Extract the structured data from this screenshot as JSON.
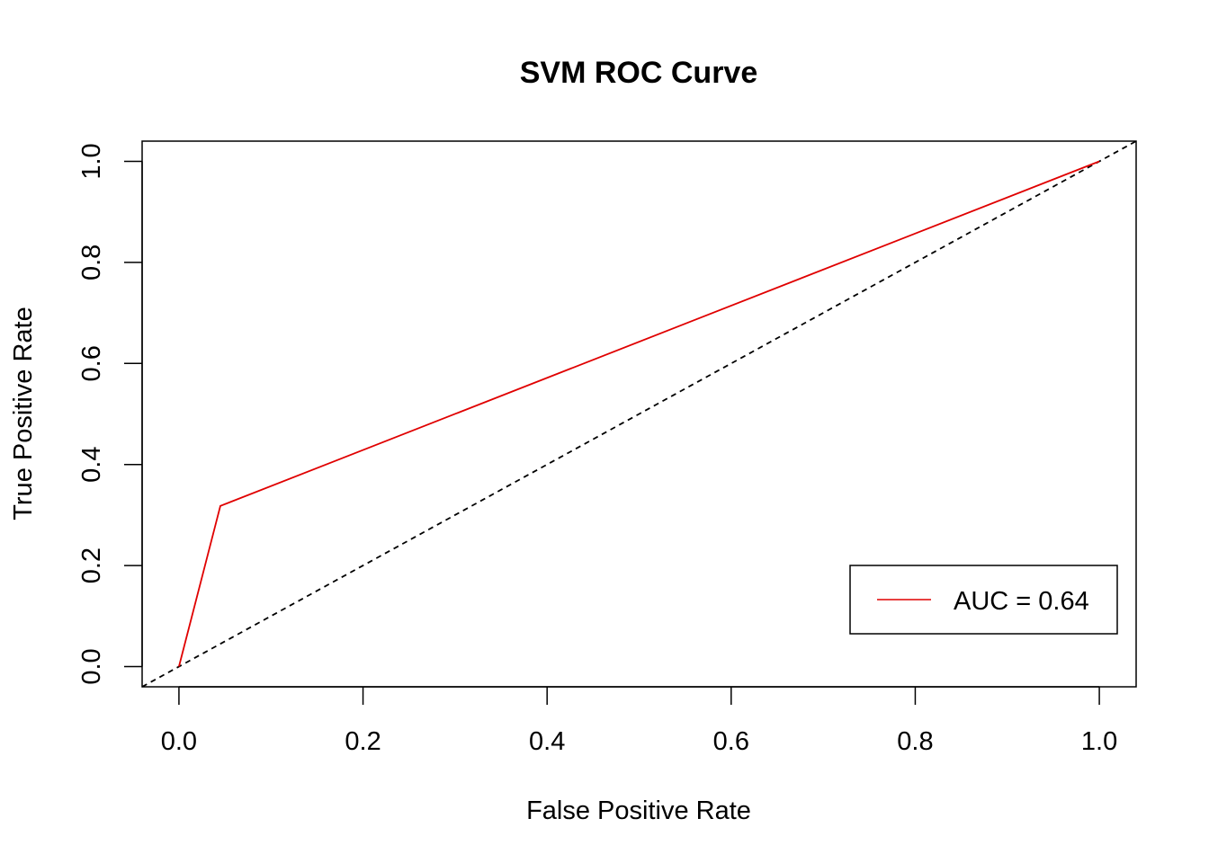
{
  "chart_data": {
    "type": "line",
    "title": "SVM ROC Curve",
    "xlabel": "False Positive Rate",
    "ylabel": "True Positive Rate",
    "xlim": [
      -0.04,
      1.04
    ],
    "ylim": [
      -0.04,
      1.04
    ],
    "xticks": [
      "0.0",
      "0.2",
      "0.4",
      "0.6",
      "0.8",
      "1.0"
    ],
    "yticks": [
      "0.0",
      "0.2",
      "0.4",
      "0.6",
      "0.8",
      "1.0"
    ],
    "grid": false,
    "series": [
      {
        "name": "AUC = 0.64",
        "color": "#e00000",
        "style": "solid",
        "x": [
          0.0,
          0.045,
          1.0
        ],
        "y": [
          0.0,
          0.318,
          1.0
        ]
      }
    ],
    "reference_line": {
      "color": "#000000",
      "style": "dashed",
      "intercept": 0,
      "slope": 1
    },
    "legend": {
      "position": "bottom-right",
      "entries": [
        "AUC = 0.64"
      ]
    }
  }
}
